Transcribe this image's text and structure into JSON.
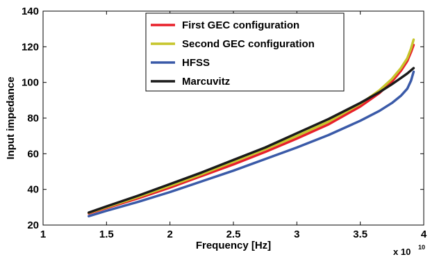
{
  "chart_data": {
    "type": "line",
    "title": "",
    "xlabel": "Frequency [Hz]",
    "ylabel": "Input impedance",
    "x_multiplier_label": "x 10",
    "x_multiplier_exp": "10",
    "xlim": [
      1,
      4
    ],
    "ylim": [
      20,
      140
    ],
    "xticks": [
      "1",
      "1.5",
      "2",
      "2.5",
      "3",
      "3.5",
      "4"
    ],
    "yticks": [
      "20",
      "40",
      "60",
      "80",
      "100",
      "120",
      "140"
    ],
    "grid": false,
    "legend_position": "top-center",
    "series": [
      {
        "name": "First GEC configuration",
        "color": "#e8202a",
        "x": [
          1.36,
          1.5,
          1.75,
          2.0,
          2.25,
          2.5,
          2.75,
          3.0,
          3.25,
          3.5,
          3.65,
          3.75,
          3.82,
          3.87,
          3.9,
          3.92
        ],
        "y": [
          26.5,
          29.5,
          35.0,
          41.0,
          47.5,
          54.0,
          61.0,
          68.5,
          76.5,
          86.5,
          94.0,
          100.5,
          106.5,
          112.0,
          117.0,
          121.0
        ]
      },
      {
        "name": "Second GEC configuration",
        "color": "#c6c52c",
        "x": [
          1.36,
          1.5,
          1.75,
          2.0,
          2.25,
          2.5,
          2.75,
          3.0,
          3.25,
          3.5,
          3.65,
          3.75,
          3.82,
          3.87,
          3.9,
          3.92
        ],
        "y": [
          26.8,
          30.0,
          35.8,
          42.0,
          48.5,
          55.5,
          62.5,
          70.0,
          78.0,
          88.0,
          95.5,
          102.0,
          108.0,
          113.5,
          119.0,
          124.0
        ]
      },
      {
        "name": "HFSS",
        "color": "#3a5aa8",
        "x": [
          1.36,
          1.5,
          1.75,
          2.0,
          2.25,
          2.5,
          2.75,
          3.0,
          3.25,
          3.5,
          3.65,
          3.75,
          3.82,
          3.87,
          3.9,
          3.92
        ],
        "y": [
          25.0,
          28.0,
          33.0,
          38.5,
          44.5,
          50.5,
          57.0,
          63.5,
          70.5,
          78.5,
          84.0,
          88.5,
          92.5,
          96.5,
          101.0,
          106.0
        ]
      },
      {
        "name": "Marcuvitz",
        "color": "#1a1a1a",
        "x": [
          1.36,
          1.5,
          1.75,
          2.0,
          2.25,
          2.5,
          2.75,
          3.0,
          3.25,
          3.5,
          3.65,
          3.75,
          3.82,
          3.87,
          3.92
        ],
        "y": [
          27.0,
          30.5,
          36.5,
          43.0,
          49.5,
          56.5,
          63.5,
          71.5,
          79.5,
          88.5,
          94.5,
          99.0,
          102.5,
          105.0,
          108.0
        ]
      }
    ]
  }
}
